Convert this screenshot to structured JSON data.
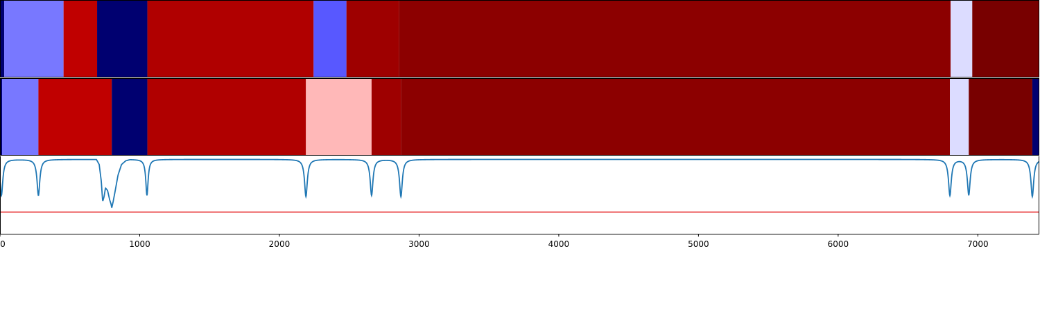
{
  "chart_data": [
    {
      "type": "heatmap",
      "x_range": [
        0,
        7440
      ],
      "segments": [
        {
          "x0": 0,
          "x1": 30,
          "color": "#000070"
        },
        {
          "x0": 30,
          "x1": 455,
          "color": "#7878ff"
        },
        {
          "x0": 455,
          "x1": 695,
          "color": "#c00000"
        },
        {
          "x0": 695,
          "x1": 1055,
          "color": "#000070"
        },
        {
          "x0": 1055,
          "x1": 2245,
          "color": "#b00000"
        },
        {
          "x0": 2245,
          "x1": 2480,
          "color": "#5858ff"
        },
        {
          "x0": 2480,
          "x1": 2855,
          "color": "#9e0000"
        },
        {
          "x0": 2855,
          "x1": 6805,
          "color": "#8c0000"
        },
        {
          "x0": 6805,
          "x1": 6960,
          "color": "#dcdcff"
        },
        {
          "x0": 6960,
          "x1": 7440,
          "color": "#780000"
        }
      ]
    },
    {
      "type": "heatmap",
      "x_range": [
        0,
        7440
      ],
      "segments": [
        {
          "x0": 0,
          "x1": 15,
          "color": "#000070"
        },
        {
          "x0": 15,
          "x1": 275,
          "color": "#7878ff"
        },
        {
          "x0": 275,
          "x1": 800,
          "color": "#c00000"
        },
        {
          "x0": 800,
          "x1": 1055,
          "color": "#000070"
        },
        {
          "x0": 1055,
          "x1": 2190,
          "color": "#b00000"
        },
        {
          "x0": 2190,
          "x1": 2660,
          "color": "#ffb8b8"
        },
        {
          "x0": 2660,
          "x1": 2870,
          "color": "#9e0000"
        },
        {
          "x0": 2870,
          "x1": 6800,
          "color": "#8c0000"
        },
        {
          "x0": 6800,
          "x1": 6935,
          "color": "#dcdcff"
        },
        {
          "x0": 6935,
          "x1": 7390,
          "color": "#780000"
        },
        {
          "x0": 7390,
          "x1": 7440,
          "color": "#000070"
        }
      ]
    },
    {
      "type": "line",
      "xlim": [
        0,
        7440
      ],
      "ylim": [
        -1.2,
        0.05
      ],
      "xticks": [
        0,
        1000,
        2000,
        3000,
        4000,
        5000,
        6000,
        7000
      ],
      "tick_labels": [
        "0",
        "1000",
        "2000",
        "3000",
        "4000",
        "5000",
        "6000",
        "7000"
      ],
      "line_color": "#1f77b4",
      "threshold": -0.85,
      "threshold_color": "#e41a1c",
      "baseline": 0,
      "dips": [
        {
          "x": 10,
          "depth": -0.58,
          "width": 12
        },
        {
          "x": 275,
          "depth": -0.58,
          "width": 12
        },
        {
          "x": 1052,
          "depth": -0.58,
          "width": 10
        },
        {
          "x": 2190,
          "depth": -0.6,
          "width": 12
        },
        {
          "x": 2660,
          "depth": -0.58,
          "width": 12
        },
        {
          "x": 2870,
          "depth": -0.6,
          "width": 12
        },
        {
          "x": 6800,
          "depth": -0.58,
          "width": 12
        },
        {
          "x": 6935,
          "depth": -0.57,
          "width": 12
        },
        {
          "x": 7390,
          "depth": -0.6,
          "width": 12
        }
      ],
      "wide_region": {
        "x": [
          690,
          710,
          725,
          735,
          745,
          755,
          770,
          785,
          795,
          800,
          810,
          825,
          845,
          870,
          900,
          930
        ],
        "y": [
          0.0,
          -0.08,
          -0.35,
          -0.68,
          -0.6,
          -0.46,
          -0.5,
          -0.65,
          -0.72,
          -0.78,
          -0.68,
          -0.5,
          -0.25,
          -0.08,
          -0.02,
          0.0
        ]
      }
    }
  ]
}
